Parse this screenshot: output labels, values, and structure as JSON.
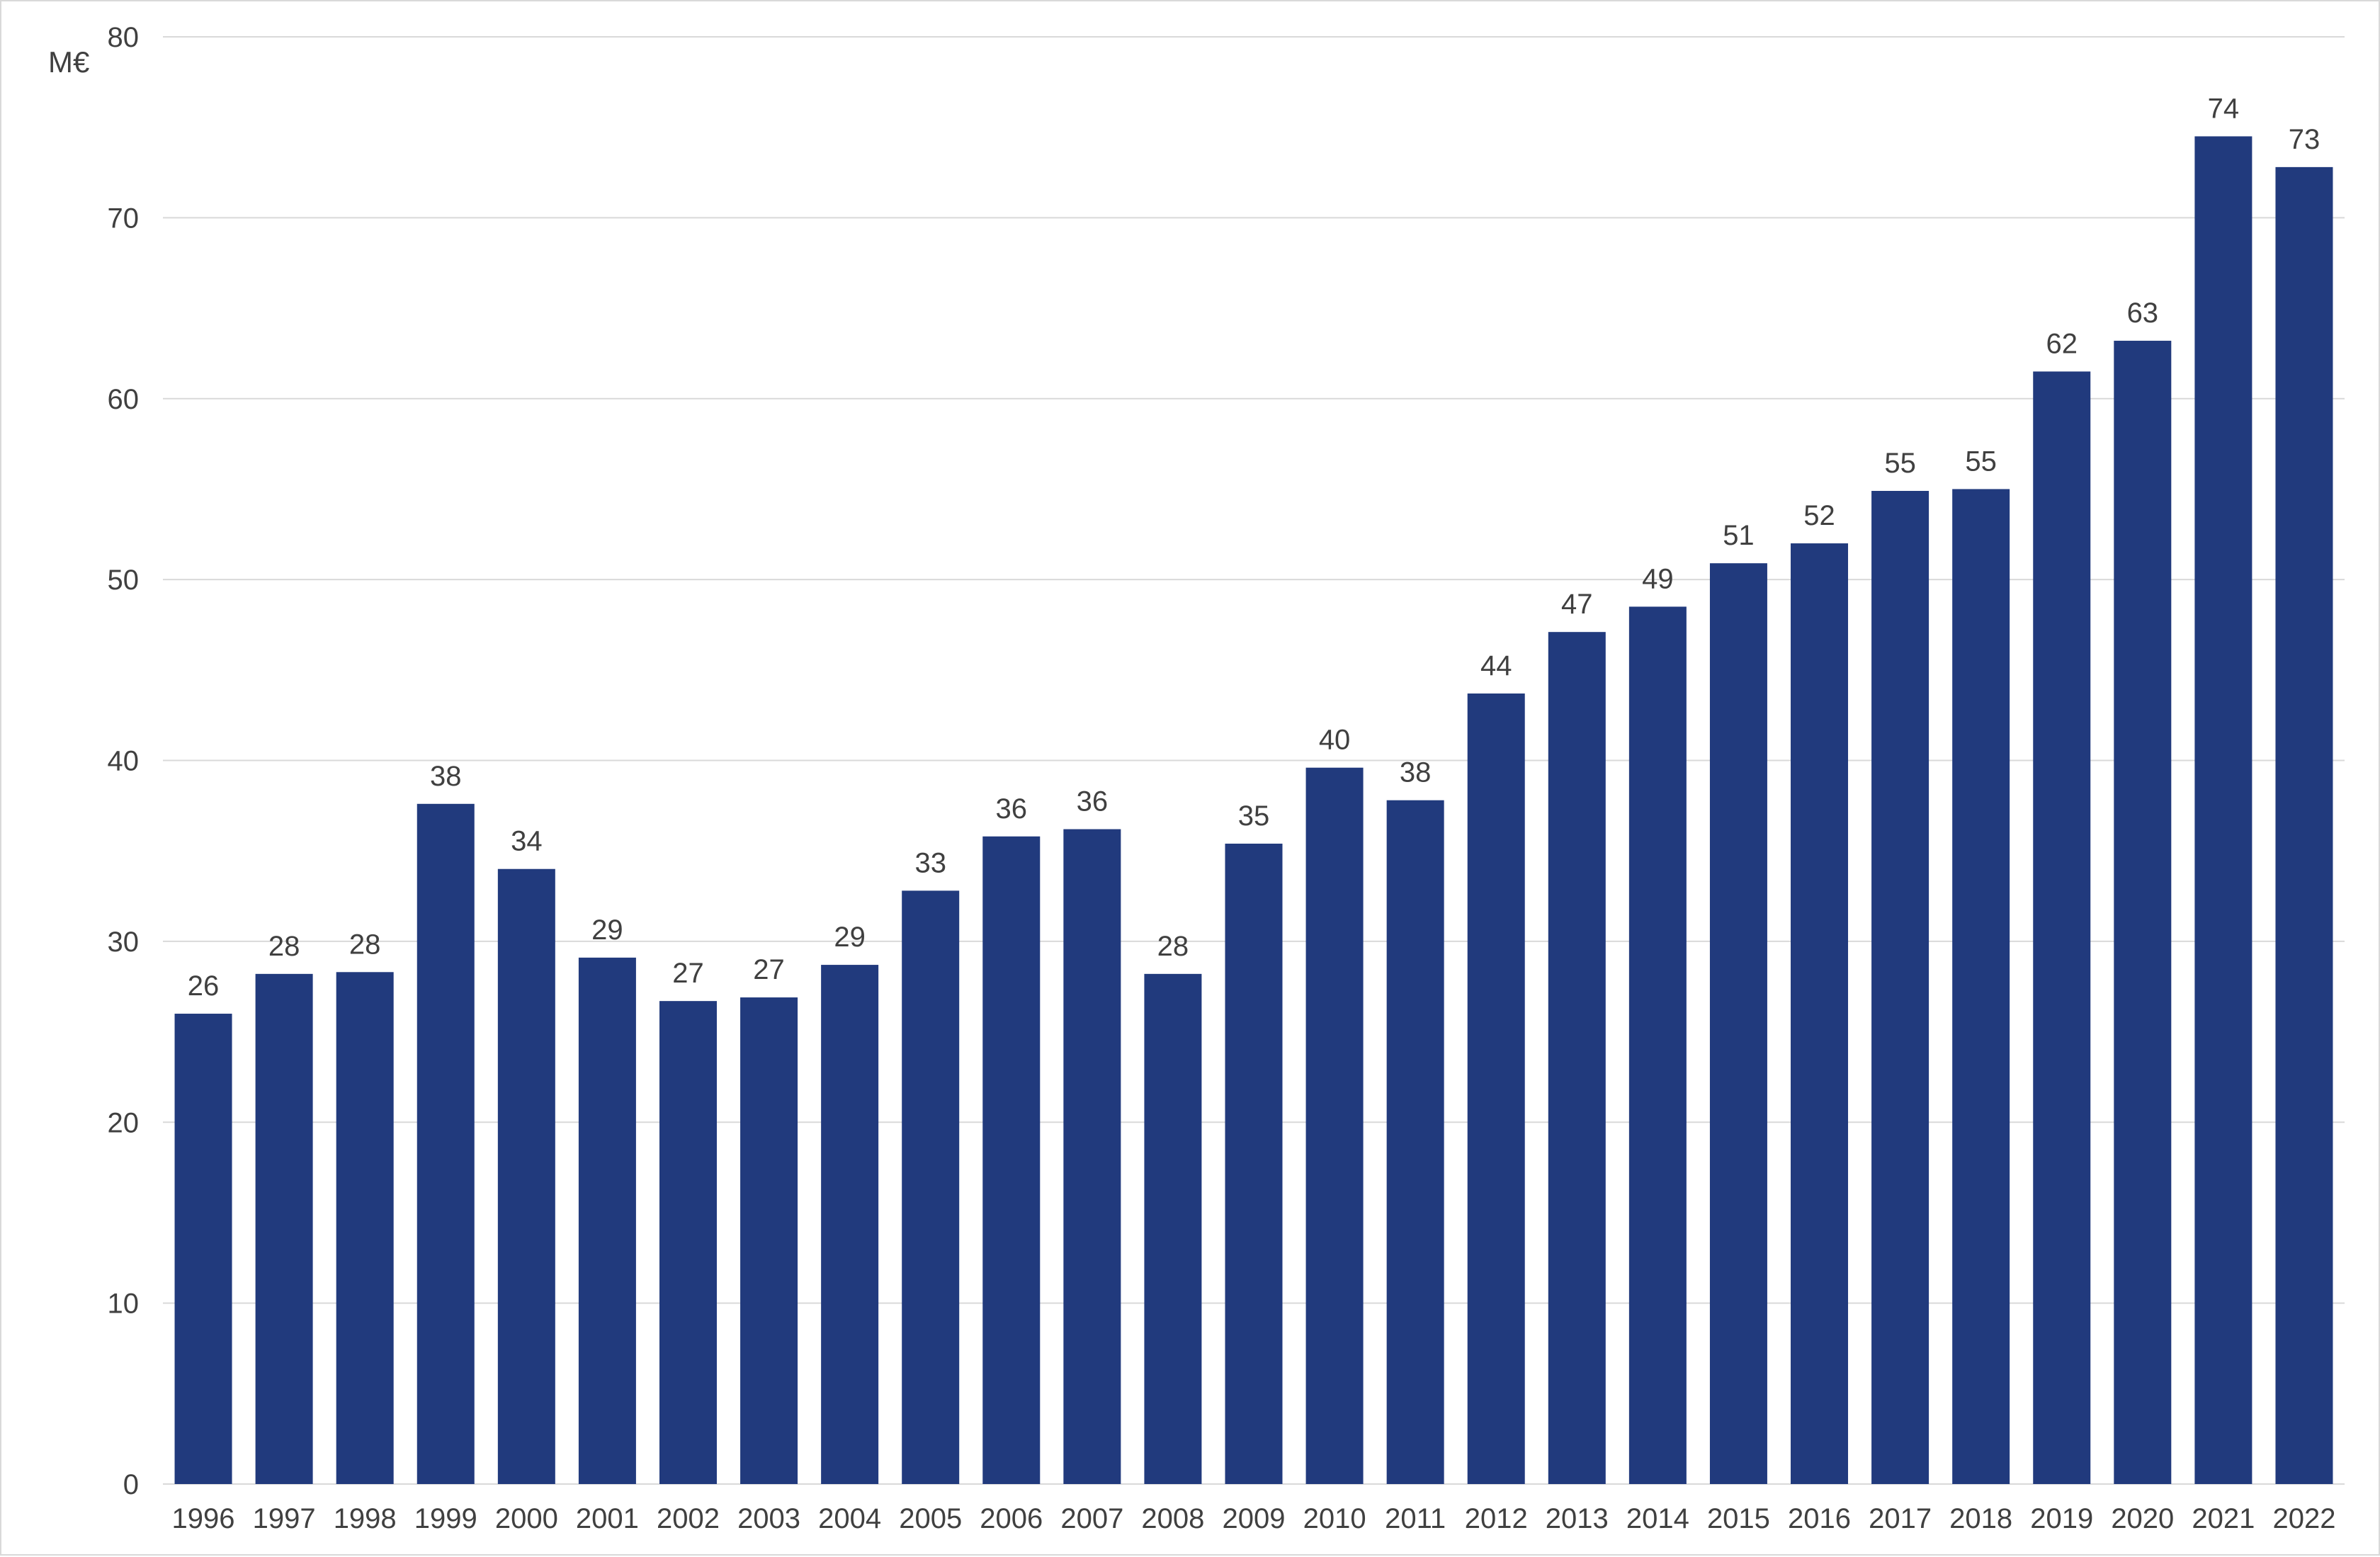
{
  "chart_data": {
    "type": "bar",
    "title": "",
    "xlabel": "",
    "ylabel": "",
    "unit_label": "M€",
    "categories": [
      "1996",
      "1997",
      "1998",
      "1999",
      "2000",
      "2001",
      "2002",
      "2003",
      "2004",
      "2005",
      "2006",
      "2007",
      "2008",
      "2009",
      "2010",
      "2011",
      "2012",
      "2013",
      "2014",
      "2015",
      "2016",
      "2017",
      "2018",
      "2019",
      "2020",
      "2021",
      "2022"
    ],
    "values": [
      26.0,
      28.2,
      28.3,
      37.6,
      34.0,
      29.1,
      26.7,
      26.9,
      28.7,
      32.8,
      35.8,
      36.2,
      28.2,
      35.4,
      39.6,
      37.8,
      43.7,
      47.1,
      48.5,
      50.9,
      52.0,
      54.9,
      55.0,
      61.5,
      63.2,
      74.5,
      72.8
    ],
    "data_labels": [
      "26",
      "28",
      "28",
      "38",
      "34",
      "29",
      "27",
      "27",
      "29",
      "33",
      "36",
      "36",
      "28",
      "35",
      "40",
      "38",
      "44",
      "47",
      "49",
      "51",
      "52",
      "55",
      "55",
      "62",
      "63",
      "74",
      "73"
    ],
    "ylim": [
      0,
      80
    ],
    "yticks": [
      0,
      10,
      20,
      30,
      40,
      50,
      60,
      70,
      80
    ],
    "grid": true,
    "legend": "none",
    "bar_color": "#213a7d",
    "grid_color": "#d9d9d9",
    "text_color": "#404040"
  }
}
